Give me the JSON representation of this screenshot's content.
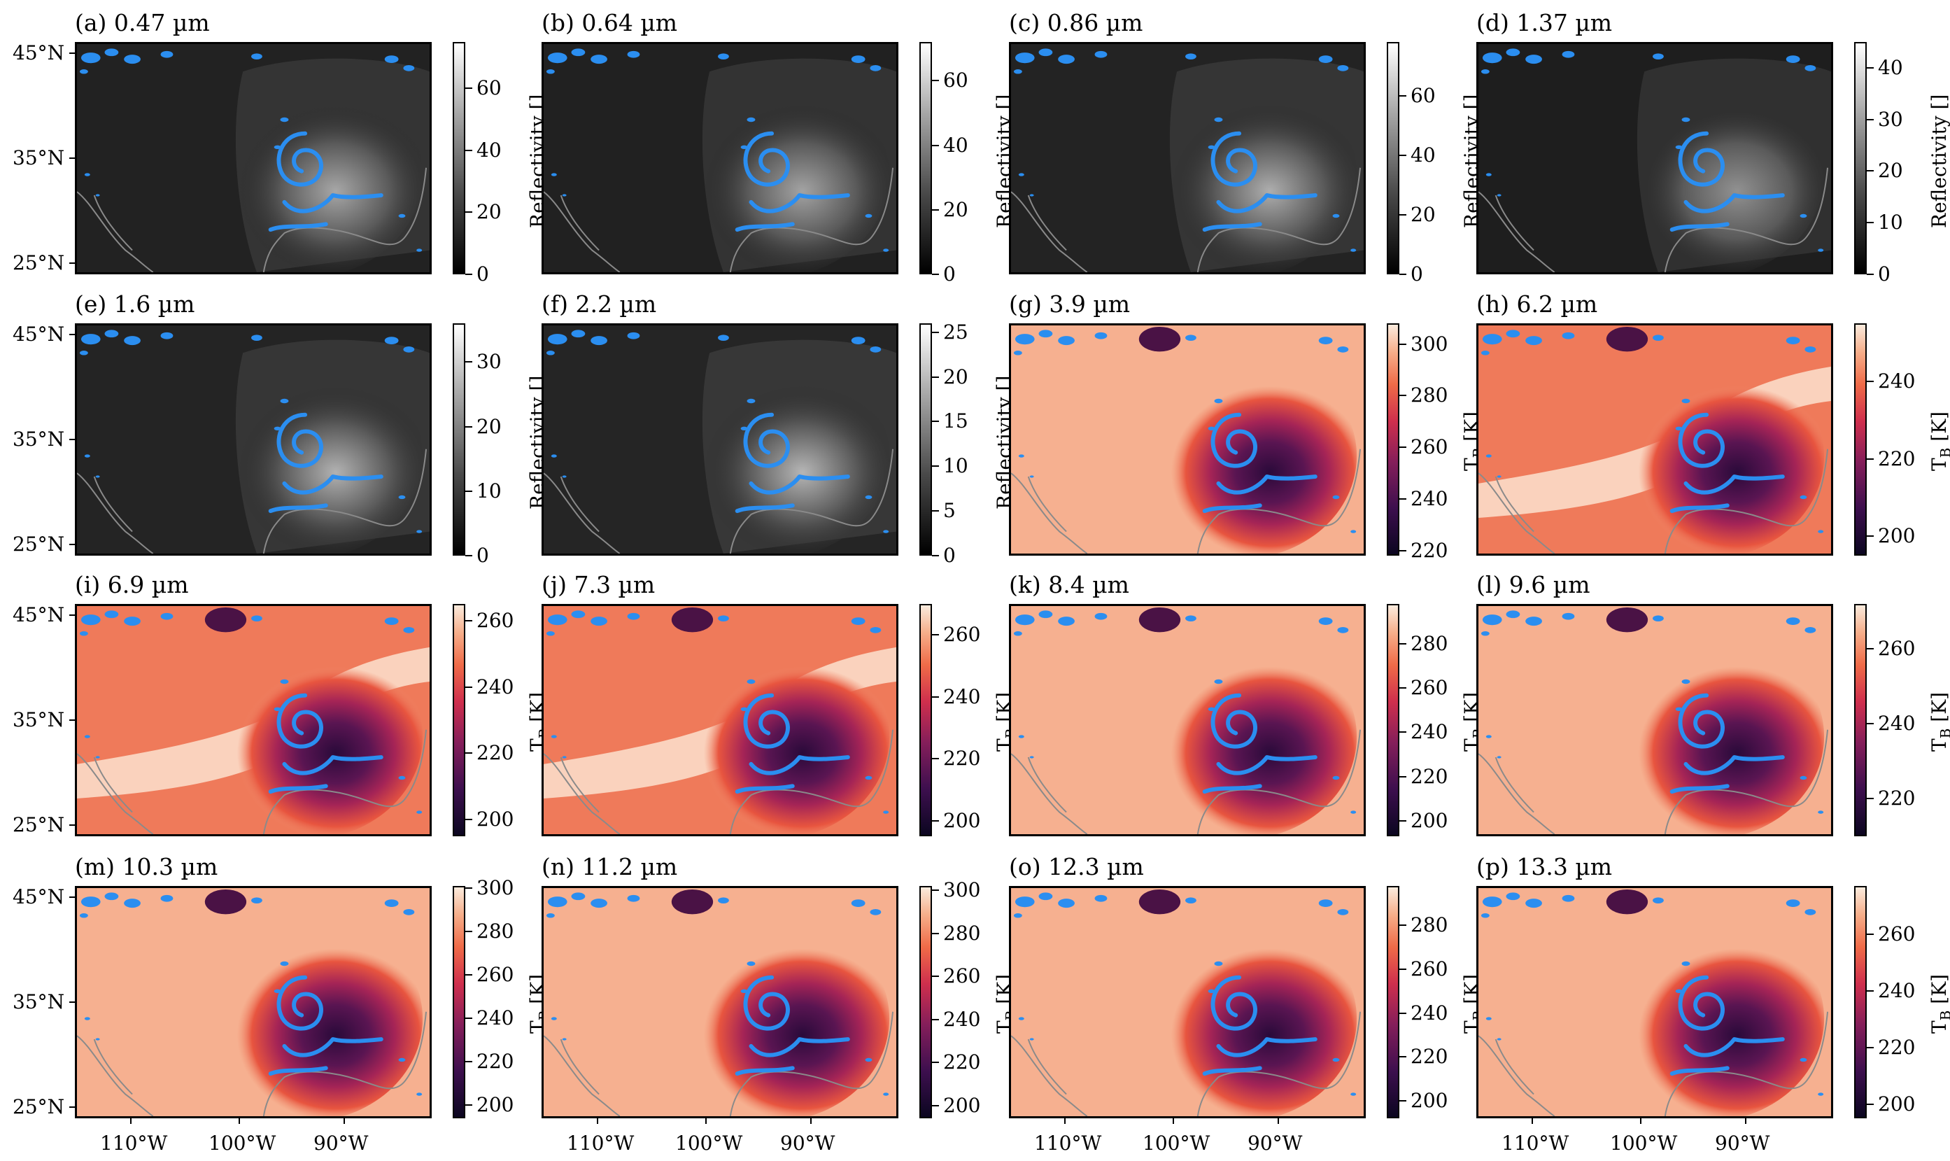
{
  "axes": {
    "lat_labels": [
      "45°N",
      "35°N",
      "25°N"
    ],
    "lon_labels": [
      "110°W",
      "100°W",
      "90°W"
    ]
  },
  "panels": [
    {
      "title": "(a) 0.47 µm",
      "cbar_label": "Reflectivity []",
      "ticks": [
        "0",
        "20",
        "40",
        "60"
      ],
      "tick_values": [
        0,
        20,
        40,
        60
      ],
      "range": [
        0,
        75
      ],
      "cmap": "gray",
      "brightness": 0.35
    },
    {
      "title": "(b) 0.64 µm",
      "cbar_label": "Reflectivity []",
      "ticks": [
        "0",
        "20",
        "40",
        "60"
      ],
      "tick_values": [
        0,
        20,
        40,
        60
      ],
      "range": [
        0,
        72
      ],
      "cmap": "gray",
      "brightness": 0.33
    },
    {
      "title": "(c) 0.86 µm",
      "cbar_label": "Reflectivity []",
      "ticks": [
        "0",
        "20",
        "40",
        "60"
      ],
      "tick_values": [
        0,
        20,
        40,
        60
      ],
      "range": [
        0,
        78
      ],
      "cmap": "gray",
      "brightness": 0.38
    },
    {
      "title": "(d) 1.37 µm",
      "cbar_label": "Reflectivity []",
      "ticks": [
        "0",
        "10",
        "20",
        "30",
        "40"
      ],
      "tick_values": [
        0,
        10,
        20,
        30,
        40
      ],
      "range": [
        0,
        45
      ],
      "cmap": "gray",
      "brightness": 0.25
    },
    {
      "title": "(e) 1.6 µm",
      "cbar_label": "Reflectivity []",
      "ticks": [
        "0",
        "10",
        "20",
        "30"
      ],
      "tick_values": [
        0,
        10,
        20,
        30
      ],
      "range": [
        0,
        36
      ],
      "cmap": "gray",
      "brightness": 0.4
    },
    {
      "title": "(f) 2.2 µm",
      "cbar_label": "Reflectivity []",
      "ticks": [
        "0",
        "5",
        "10",
        "15",
        "20",
        "25"
      ],
      "tick_values": [
        0,
        5,
        10,
        15,
        20,
        25
      ],
      "range": [
        0,
        26
      ],
      "cmap": "gray",
      "brightness": 0.42
    },
    {
      "title": "(g) 3.9 µm",
      "cbar_label": "T_B [K]",
      "ticks": [
        "220",
        "240",
        "260",
        "280",
        "300"
      ],
      "tick_values": [
        220,
        240,
        260,
        280,
        300
      ],
      "range": [
        218,
        308
      ],
      "cmap": "rocket",
      "brightness": 0
    },
    {
      "title": "(h) 6.2 µm",
      "cbar_label": "T_B [K]",
      "ticks": [
        "200",
        "220",
        "240"
      ],
      "tick_values": [
        200,
        220,
        240
      ],
      "range": [
        195,
        255
      ],
      "cmap": "rocket",
      "brightness": 0
    },
    {
      "title": "(i) 6.9 µm",
      "cbar_label": "T_B [K]",
      "ticks": [
        "200",
        "220",
        "240",
        "260"
      ],
      "tick_values": [
        200,
        220,
        240,
        260
      ],
      "range": [
        195,
        265
      ],
      "cmap": "rocket",
      "brightness": 0
    },
    {
      "title": "(j) 7.3 µm",
      "cbar_label": "T_B [K]",
      "ticks": [
        "200",
        "220",
        "240",
        "260"
      ],
      "tick_values": [
        200,
        220,
        240,
        260
      ],
      "range": [
        195,
        270
      ],
      "cmap": "rocket",
      "brightness": 0
    },
    {
      "title": "(k) 8.4 µm",
      "cbar_label": "T_B [K]",
      "ticks": [
        "200",
        "220",
        "240",
        "260",
        "280"
      ],
      "tick_values": [
        200,
        220,
        240,
        260,
        280
      ],
      "range": [
        193,
        298
      ],
      "cmap": "rocket",
      "brightness": 0
    },
    {
      "title": "(l) 9.6 µm",
      "cbar_label": "T_B [K]",
      "ticks": [
        "220",
        "240",
        "260"
      ],
      "tick_values": [
        220,
        240,
        260
      ],
      "range": [
        210,
        272
      ],
      "cmap": "rocket",
      "brightness": 0
    },
    {
      "title": "(m) 10.3 µm",
      "cbar_label": "T_B [K]",
      "ticks": [
        "200",
        "220",
        "240",
        "260",
        "280",
        "300"
      ],
      "tick_values": [
        200,
        220,
        240,
        260,
        280,
        300
      ],
      "range": [
        194,
        301
      ],
      "cmap": "rocket",
      "brightness": 0
    },
    {
      "title": "(n) 11.2 µm",
      "cbar_label": "T_B [K]",
      "ticks": [
        "200",
        "220",
        "240",
        "260",
        "280",
        "300"
      ],
      "tick_values": [
        200,
        220,
        240,
        260,
        280,
        300
      ],
      "range": [
        194,
        302
      ],
      "cmap": "rocket",
      "brightness": 0
    },
    {
      "title": "(o) 12.3 µm",
      "cbar_label": "T_B [K]",
      "ticks": [
        "200",
        "220",
        "240",
        "260",
        "280"
      ],
      "tick_values": [
        200,
        220,
        240,
        260,
        280
      ],
      "range": [
        192,
        298
      ],
      "cmap": "rocket",
      "brightness": 0
    },
    {
      "title": "(p) 13.3 µm",
      "cbar_label": "T_B [K]",
      "ticks": [
        "200",
        "220",
        "240",
        "260"
      ],
      "tick_values": [
        200,
        220,
        240,
        260
      ],
      "range": [
        195,
        277
      ],
      "cmap": "rocket",
      "brightness": 0
    }
  ],
  "colors": {
    "overlay": "#2b8ef0",
    "coast": "#8a8a8a",
    "rocket_low": "#1a0a2e",
    "rocket_mid": "#b01e5a",
    "rocket_high": "#fbe5d0"
  }
}
